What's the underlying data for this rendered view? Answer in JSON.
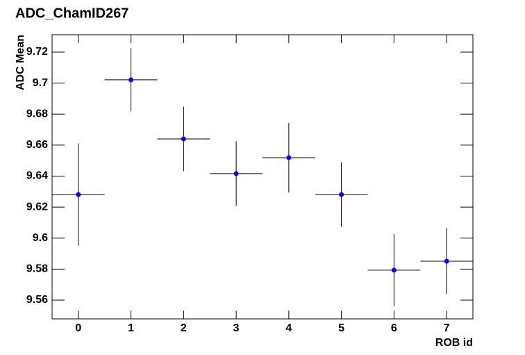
{
  "chart_data": {
    "type": "scatter",
    "title": "ADC_ChamID267",
    "x_label": "ROB id",
    "y_label": "ADC Mean",
    "x": [
      0,
      1,
      2,
      3,
      4,
      5,
      6,
      7
    ],
    "xerr": [
      0.5,
      0.5,
      0.5,
      0.5,
      0.5,
      0.5,
      0.5,
      0.5
    ],
    "series": [
      {
        "color": "#0000ff",
        "values": [
          9.6281,
          9.7021,
          9.664,
          9.6416,
          9.6519,
          9.6281,
          9.5793,
          9.5851
        ],
        "yerr": [
          0.033,
          0.0204,
          0.0208,
          0.0209,
          0.0224,
          0.0209,
          0.0233,
          0.0213
        ]
      }
    ],
    "xlim": [
      -0.5,
      7.5
    ],
    "ylim": [
      9.5479,
      9.7312
    ],
    "xticks": [
      0,
      1,
      2,
      3,
      4,
      5,
      6,
      7
    ],
    "yticks": [
      9.56,
      9.58,
      9.6,
      9.62,
      9.64,
      9.66,
      9.68,
      9.7,
      9.72
    ]
  }
}
